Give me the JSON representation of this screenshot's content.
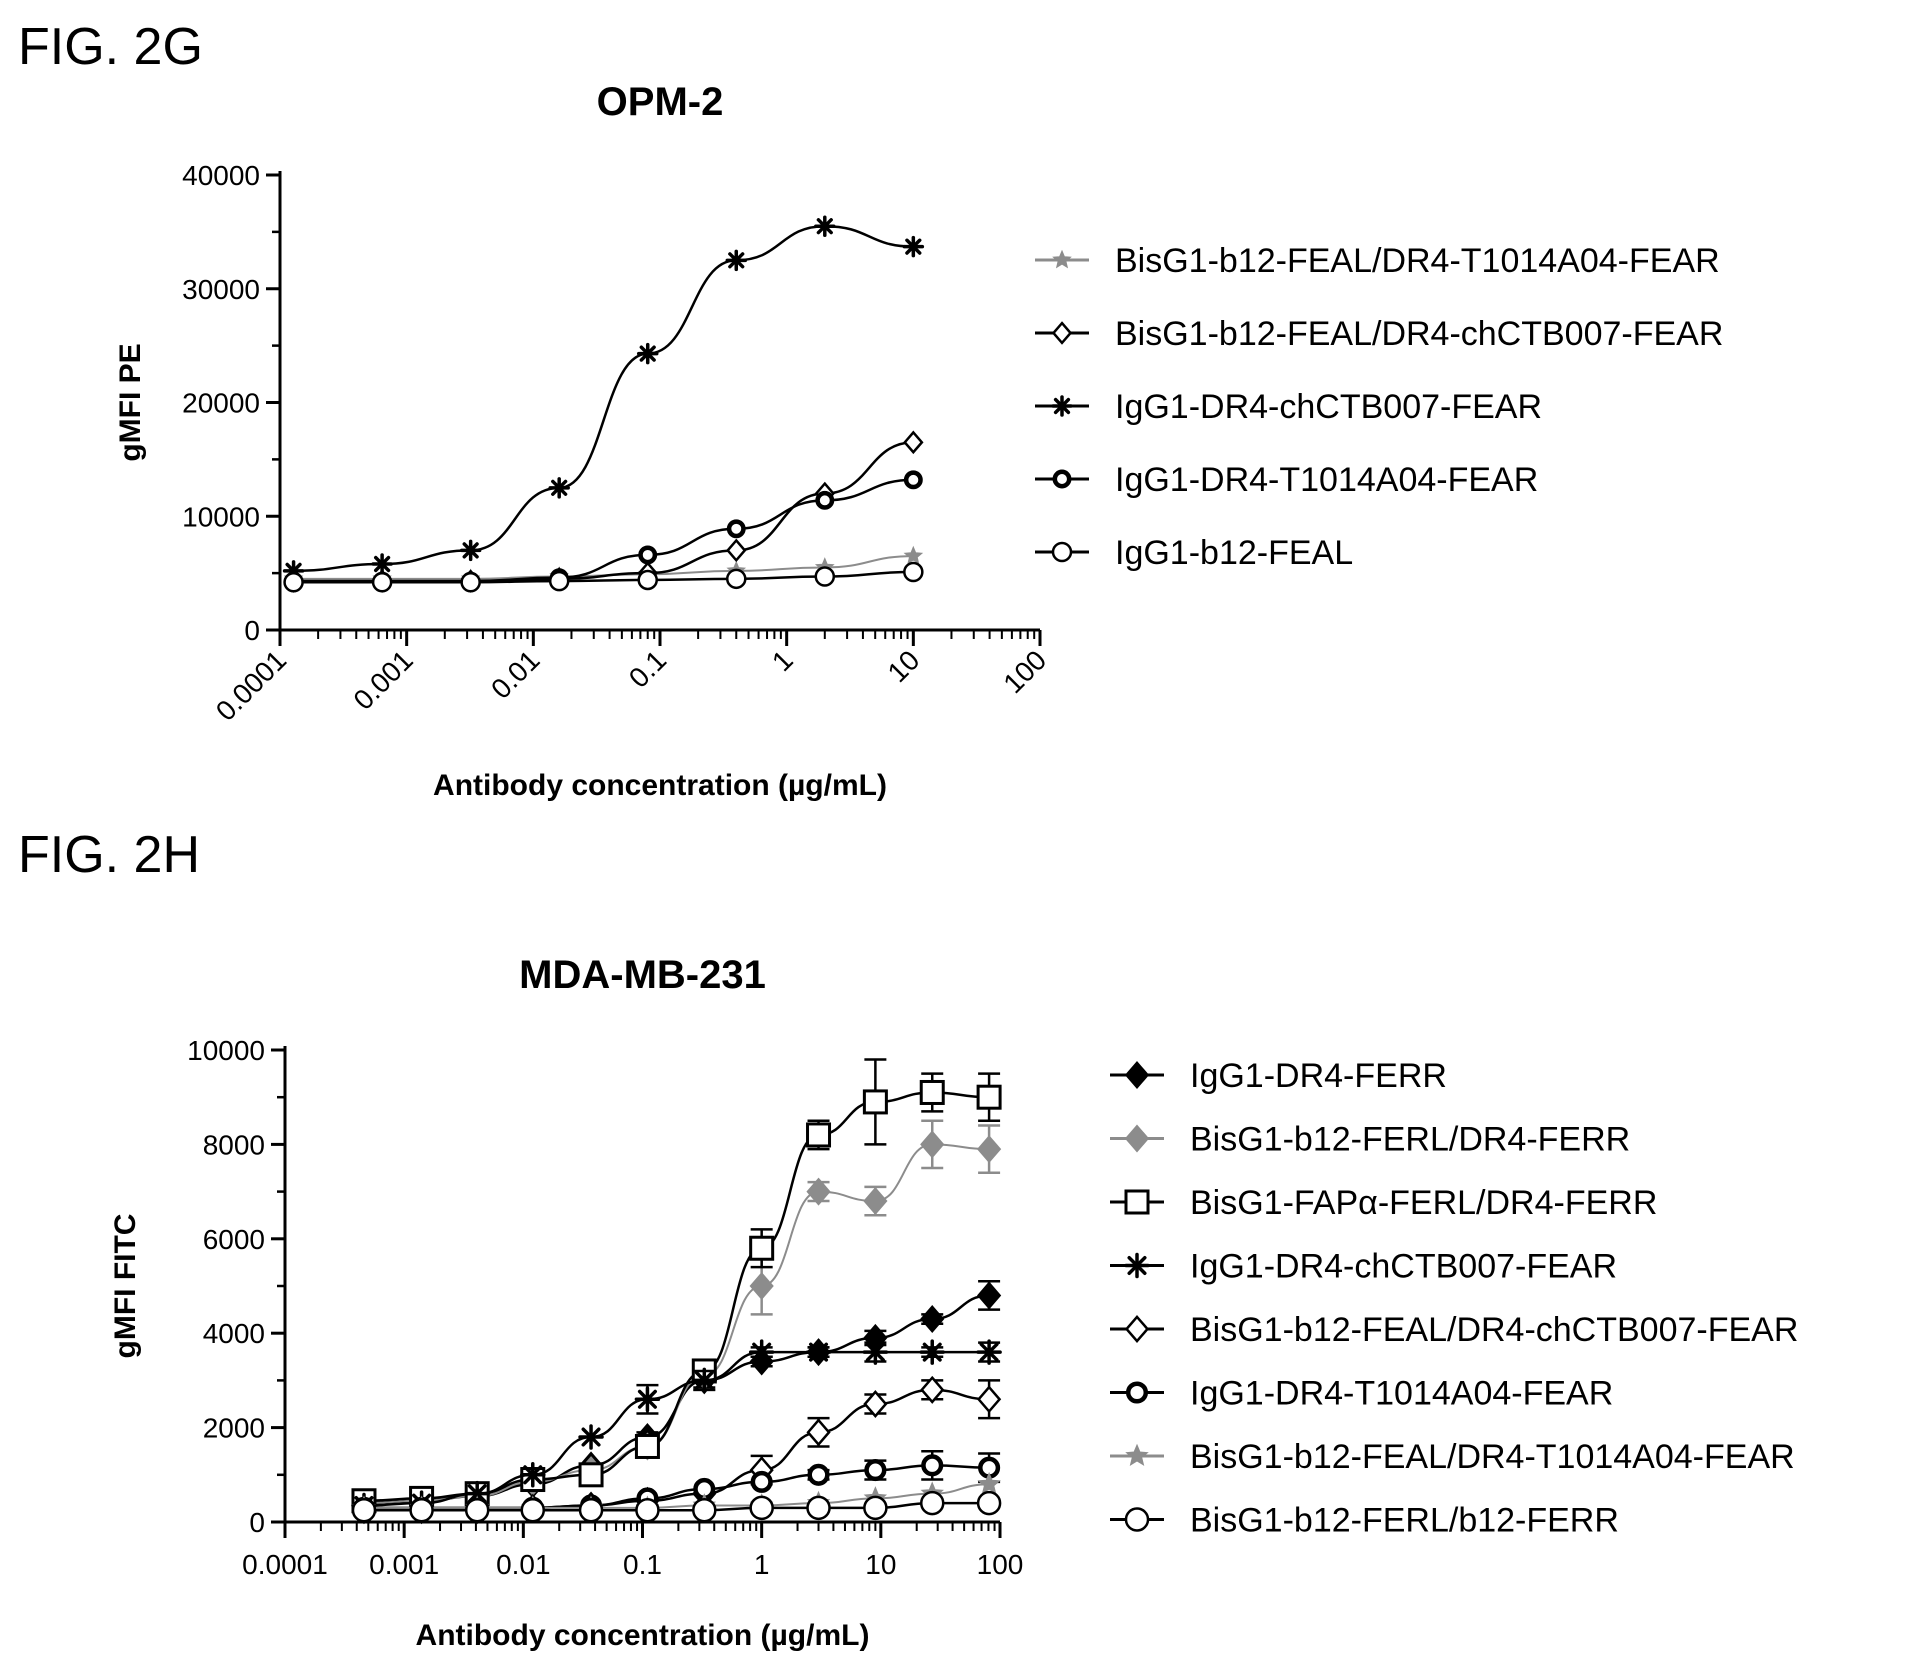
{
  "figures": [
    {
      "label": "FIG. 2G"
    },
    {
      "label": "FIG. 2H"
    }
  ],
  "chart_data": [
    {
      "type": "scatter",
      "title": "OPM-2",
      "xlabel": "Antibody concentration (µg/mL)",
      "ylabel": "gMFI PE",
      "xscale": "log",
      "xlim": [
        0.0001,
        100
      ],
      "ylim": [
        0,
        40000
      ],
      "x_ticks": [
        "0.0001",
        "0.001",
        "0.01",
        "0.1",
        "1",
        "10",
        "100"
      ],
      "y_ticks": [
        "0",
        "10000",
        "20000",
        "30000",
        "40000"
      ],
      "x_tick_labels_rotated": true,
      "legend_position": "right",
      "series": [
        {
          "name": "BisG1-b12-FEAL/DR4-T1014A04-FEAR",
          "marker": "star",
          "color": "#8c8c8c",
          "x": [
            0.000128,
            0.00064,
            0.0032,
            0.016,
            0.08,
            0.4,
            2,
            10
          ],
          "y": [
            4500,
            4500,
            4500,
            4700,
            4900,
            5200,
            5500,
            6500
          ]
        },
        {
          "name": "BisG1-b12-FEAL/DR4-chCTB007-FEAR",
          "marker": "diamond-open",
          "color": "#000000",
          "x": [
            0.000128,
            0.00064,
            0.0032,
            0.016,
            0.08,
            0.4,
            2,
            10
          ],
          "y": [
            4300,
            4300,
            4300,
            4500,
            5000,
            7000,
            12000,
            16500
          ]
        },
        {
          "name": "IgG1-DR4-chCTB007-FEAR",
          "marker": "asterisk",
          "color": "#000000",
          "x": [
            0.000128,
            0.00064,
            0.0032,
            0.016,
            0.08,
            0.4,
            2,
            10
          ],
          "y": [
            5200,
            5800,
            7000,
            12500,
            24300,
            32500,
            35500,
            33700
          ]
        },
        {
          "name": "IgG1-DR4-T1014A04-FEAR",
          "marker": "circle-thick",
          "color": "#000000",
          "x": [
            0.000128,
            0.00064,
            0.0032,
            0.016,
            0.08,
            0.4,
            2,
            10
          ],
          "y": [
            4300,
            4300,
            4300,
            4600,
            6600,
            8900,
            11400,
            13200
          ]
        },
        {
          "name": "IgG1-b12-FEAL",
          "marker": "circle-open",
          "color": "#000000",
          "x": [
            0.000128,
            0.00064,
            0.0032,
            0.016,
            0.08,
            0.4,
            2,
            10
          ],
          "y": [
            4200,
            4200,
            4200,
            4300,
            4400,
            4500,
            4700,
            5100
          ]
        }
      ]
    },
    {
      "type": "scatter",
      "title": "MDA-MB-231",
      "xlabel": "Antibody concentration (µg/mL)",
      "ylabel": "gMFI FITC",
      "xscale": "log",
      "xlim": [
        0.0001,
        100
      ],
      "ylim": [
        0,
        10000
      ],
      "x_ticks": [
        "0.0001",
        "0.001",
        "0.01",
        "0.1",
        "1",
        "10",
        "100"
      ],
      "y_ticks": [
        "0",
        "2000",
        "4000",
        "6000",
        "8000",
        "10000"
      ],
      "error_bars": true,
      "legend_position": "right",
      "series": [
        {
          "name": "IgG1-DR4-FERR",
          "marker": "diamond-filled",
          "color": "#000000",
          "x": [
            0.00046,
            0.0014,
            0.0041,
            0.012,
            0.037,
            0.11,
            0.33,
            1,
            3,
            9,
            27,
            81
          ],
          "y": [
            400,
            450,
            550,
            800,
            1200,
            1800,
            3000,
            3400,
            3600,
            3900,
            4300,
            4800
          ],
          "err": [
            0,
            0,
            0,
            0,
            0,
            100,
            150,
            100,
            100,
            150,
            100,
            300
          ]
        },
        {
          "name": "BisG1-b12-FERL/DR4-FERR",
          "marker": "diamond-filled",
          "color": "#8c8c8c",
          "x": [
            0.00046,
            0.0014,
            0.0041,
            0.012,
            0.037,
            0.11,
            0.33,
            1,
            3,
            9,
            27,
            81
          ],
          "y": [
            400,
            450,
            550,
            850,
            1100,
            1600,
            3100,
            5000,
            7000,
            6800,
            8000,
            7900
          ],
          "err": [
            0,
            0,
            0,
            0,
            0,
            150,
            300,
            600,
            200,
            300,
            500,
            500
          ]
        },
        {
          "name": "BisG1-FAPα-FERL/DR4-FERR",
          "marker": "square-open",
          "color": "#000000",
          "x": [
            0.00046,
            0.0014,
            0.0041,
            0.012,
            0.037,
            0.11,
            0.33,
            1,
            3,
            9,
            27,
            81
          ],
          "y": [
            450,
            500,
            600,
            900,
            1000,
            1600,
            3200,
            5800,
            8200,
            8900,
            9100,
            9000
          ],
          "err": [
            0,
            0,
            0,
            0,
            0,
            100,
            200,
            400,
            300,
            900,
            400,
            500
          ]
        },
        {
          "name": "IgG1-DR4-chCTB007-FEAR",
          "marker": "asterisk",
          "color": "#000000",
          "x": [
            0.00046,
            0.0014,
            0.0041,
            0.012,
            0.037,
            0.11,
            0.33,
            1,
            3,
            9,
            27,
            81
          ],
          "y": [
            350,
            400,
            600,
            1000,
            1800,
            2600,
            3000,
            3600,
            3600,
            3600,
            3600,
            3600
          ],
          "err": [
            0,
            0,
            0,
            0,
            0,
            300,
            200,
            100,
            100,
            200,
            100,
            200
          ]
        },
        {
          "name": "BisG1-b12-FEAL/DR4-chCTB007-FEAR",
          "marker": "diamond-open",
          "color": "#000000",
          "x": [
            0.00046,
            0.0014,
            0.0041,
            0.012,
            0.037,
            0.11,
            0.33,
            1,
            3,
            9,
            27,
            81
          ],
          "y": [
            250,
            250,
            250,
            300,
            350,
            450,
            600,
            1100,
            1900,
            2500,
            2800,
            2600
          ],
          "err": [
            0,
            0,
            0,
            0,
            0,
            0,
            0,
            300,
            300,
            200,
            200,
            400
          ]
        },
        {
          "name": "IgG1-DR4-T1014A04-FEAR",
          "marker": "circle-thick",
          "color": "#000000",
          "x": [
            0.00046,
            0.0014,
            0.0041,
            0.012,
            0.037,
            0.11,
            0.33,
            1,
            3,
            9,
            27,
            81
          ],
          "y": [
            300,
            300,
            300,
            300,
            350,
            500,
            700,
            850,
            1000,
            1100,
            1200,
            1150
          ],
          "err": [
            0,
            0,
            0,
            0,
            0,
            0,
            0,
            0,
            100,
            200,
            300,
            300
          ]
        },
        {
          "name": "BisG1-b12-FEAL/DR4-T1014A04-FEAR",
          "marker": "star",
          "color": "#8c8c8c",
          "x": [
            0.00046,
            0.0014,
            0.0041,
            0.012,
            0.037,
            0.11,
            0.33,
            1,
            3,
            9,
            27,
            81
          ],
          "y": [
            300,
            300,
            300,
            300,
            300,
            300,
            350,
            350,
            400,
            500,
            600,
            800
          ],
          "err": [
            0,
            0,
            0,
            0,
            0,
            0,
            0,
            0,
            0,
            0,
            0,
            0
          ]
        },
        {
          "name": "BisG1-b12-FERL/b12-FERR",
          "marker": "circle-open",
          "color": "#000000",
          "x": [
            0.00046,
            0.0014,
            0.0041,
            0.012,
            0.037,
            0.11,
            0.33,
            1,
            3,
            9,
            27,
            81
          ],
          "y": [
            250,
            250,
            250,
            250,
            250,
            250,
            250,
            300,
            300,
            300,
            400,
            400
          ],
          "err": [
            0,
            0,
            0,
            0,
            0,
            0,
            0,
            0,
            0,
            0,
            0,
            0
          ]
        }
      ]
    }
  ]
}
